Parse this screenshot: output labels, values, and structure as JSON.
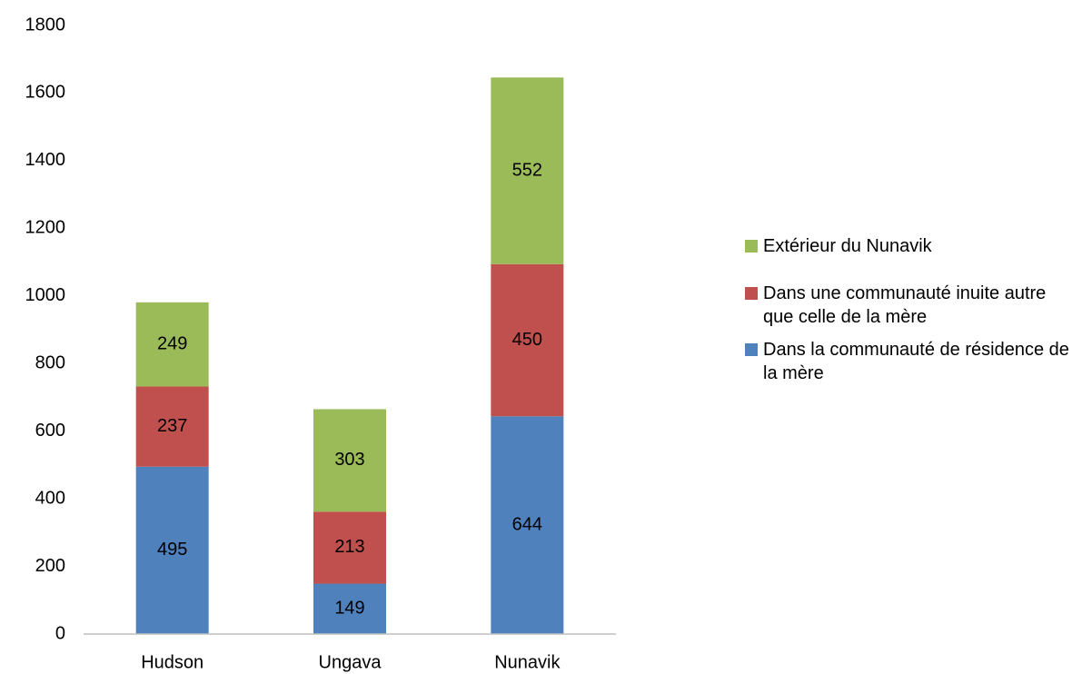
{
  "chart_data": {
    "type": "stacked_bar",
    "categories": [
      "Hudson",
      "Ungava",
      "Nunavik"
    ],
    "series": [
      {
        "name": "Dans la communauté de résidence de la mère",
        "color": "#4f81bd",
        "values": [
          495,
          149,
          644
        ]
      },
      {
        "name": "Dans une communauté inuite autre que celle de la mère",
        "color": "#c0504d",
        "values": [
          237,
          213,
          450
        ]
      },
      {
        "name": "Extérieur du Nunavik",
        "color": "#9bbb59",
        "values": [
          249,
          303,
          552
        ]
      }
    ],
    "ylim": [
      0,
      1800
    ],
    "yticks": [
      0,
      200,
      400,
      600,
      800,
      1000,
      1200,
      1400,
      1600,
      1800
    ],
    "grid": false,
    "legend": "right"
  }
}
